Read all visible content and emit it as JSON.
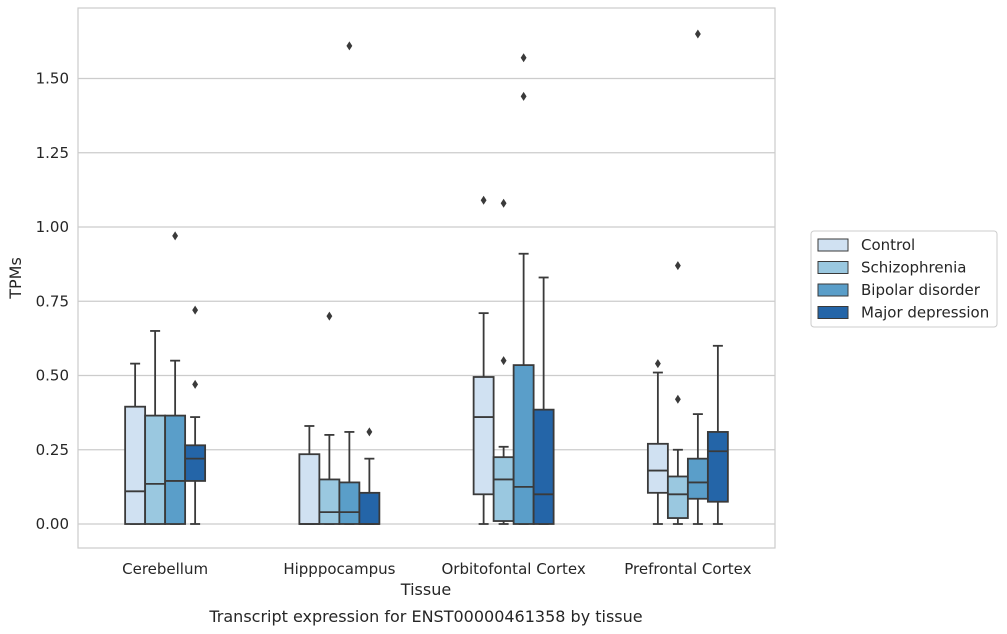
{
  "chart_data": {
    "type": "box",
    "caption": "Transcript expression for ENST00000461358 by tissue",
    "xlabel": "Tissue",
    "ylabel": "TPMs",
    "ylim": [
      -0.08,
      1.73
    ],
    "yticks": [
      0.0,
      0.25,
      0.5,
      0.75,
      1.0,
      1.25,
      1.5
    ],
    "ytick_labels": [
      "0.00",
      "0.25",
      "0.50",
      "0.75",
      "1.00",
      "1.25",
      "1.50"
    ],
    "grid": "horizontal",
    "legend_position": "right",
    "categories": [
      "Cerebellum",
      "Hipppocampus",
      "Orbitofontal Cortex",
      "Prefrontal Cortex"
    ],
    "series": [
      {
        "name": "Control",
        "color": "#d0e1f2",
        "boxes": [
          {
            "whislo": 0.0,
            "q1": 0.0,
            "med": 0.11,
            "q3": 0.395,
            "whishi": 0.54,
            "fliers": []
          },
          {
            "whislo": 0.0,
            "q1": 0.0,
            "med": 0.0,
            "q3": 0.235,
            "whishi": 0.33,
            "fliers": []
          },
          {
            "whislo": 0.0,
            "q1": 0.1,
            "med": 0.36,
            "q3": 0.495,
            "whishi": 0.71,
            "fliers": [
              1.09
            ]
          },
          {
            "whislo": 0.0,
            "q1": 0.105,
            "med": 0.18,
            "q3": 0.27,
            "whishi": 0.51,
            "fliers": [
              0.54
            ]
          }
        ]
      },
      {
        "name": "Schizophrenia",
        "color": "#9ac8e0",
        "boxes": [
          {
            "whislo": 0.0,
            "q1": 0.0,
            "med": 0.135,
            "q3": 0.365,
            "whishi": 0.65,
            "fliers": []
          },
          {
            "whislo": 0.0,
            "q1": 0.0,
            "med": 0.04,
            "q3": 0.15,
            "whishi": 0.3,
            "fliers": [
              0.7
            ]
          },
          {
            "whislo": 0.0,
            "q1": 0.01,
            "med": 0.15,
            "q3": 0.225,
            "whishi": 0.26,
            "fliers": [
              0.55,
              1.08
            ]
          },
          {
            "whislo": 0.0,
            "q1": 0.02,
            "med": 0.1,
            "q3": 0.16,
            "whishi": 0.25,
            "fliers": [
              0.42,
              0.87
            ]
          }
        ]
      },
      {
        "name": "Bipolar disorder",
        "color": "#5a9ec9",
        "boxes": [
          {
            "whislo": 0.0,
            "q1": 0.0,
            "med": 0.145,
            "q3": 0.365,
            "whishi": 0.55,
            "fliers": [
              0.97
            ]
          },
          {
            "whislo": 0.0,
            "q1": 0.0,
            "med": 0.04,
            "q3": 0.14,
            "whishi": 0.31,
            "fliers": [
              1.61
            ]
          },
          {
            "whislo": 0.0,
            "q1": 0.0,
            "med": 0.125,
            "q3": 0.535,
            "whishi": 0.91,
            "fliers": [
              1.44,
              1.57
            ]
          },
          {
            "whislo": 0.0,
            "q1": 0.085,
            "med": 0.14,
            "q3": 0.22,
            "whishi": 0.37,
            "fliers": [
              1.65
            ]
          }
        ]
      },
      {
        "name": "Major depression",
        "color": "#2465a8",
        "boxes": [
          {
            "whislo": 0.0,
            "q1": 0.145,
            "med": 0.22,
            "q3": 0.265,
            "whishi": 0.36,
            "fliers": [
              0.47,
              0.72
            ]
          },
          {
            "whislo": 0.0,
            "q1": 0.0,
            "med": 0.0,
            "q3": 0.105,
            "whishi": 0.22,
            "fliers": [
              0.31
            ]
          },
          {
            "whislo": 0.0,
            "q1": 0.0,
            "med": 0.1,
            "q3": 0.385,
            "whishi": 0.83,
            "fliers": []
          },
          {
            "whislo": 0.0,
            "q1": 0.075,
            "med": 0.245,
            "q3": 0.31,
            "whishi": 0.6,
            "fliers": []
          }
        ]
      }
    ]
  }
}
